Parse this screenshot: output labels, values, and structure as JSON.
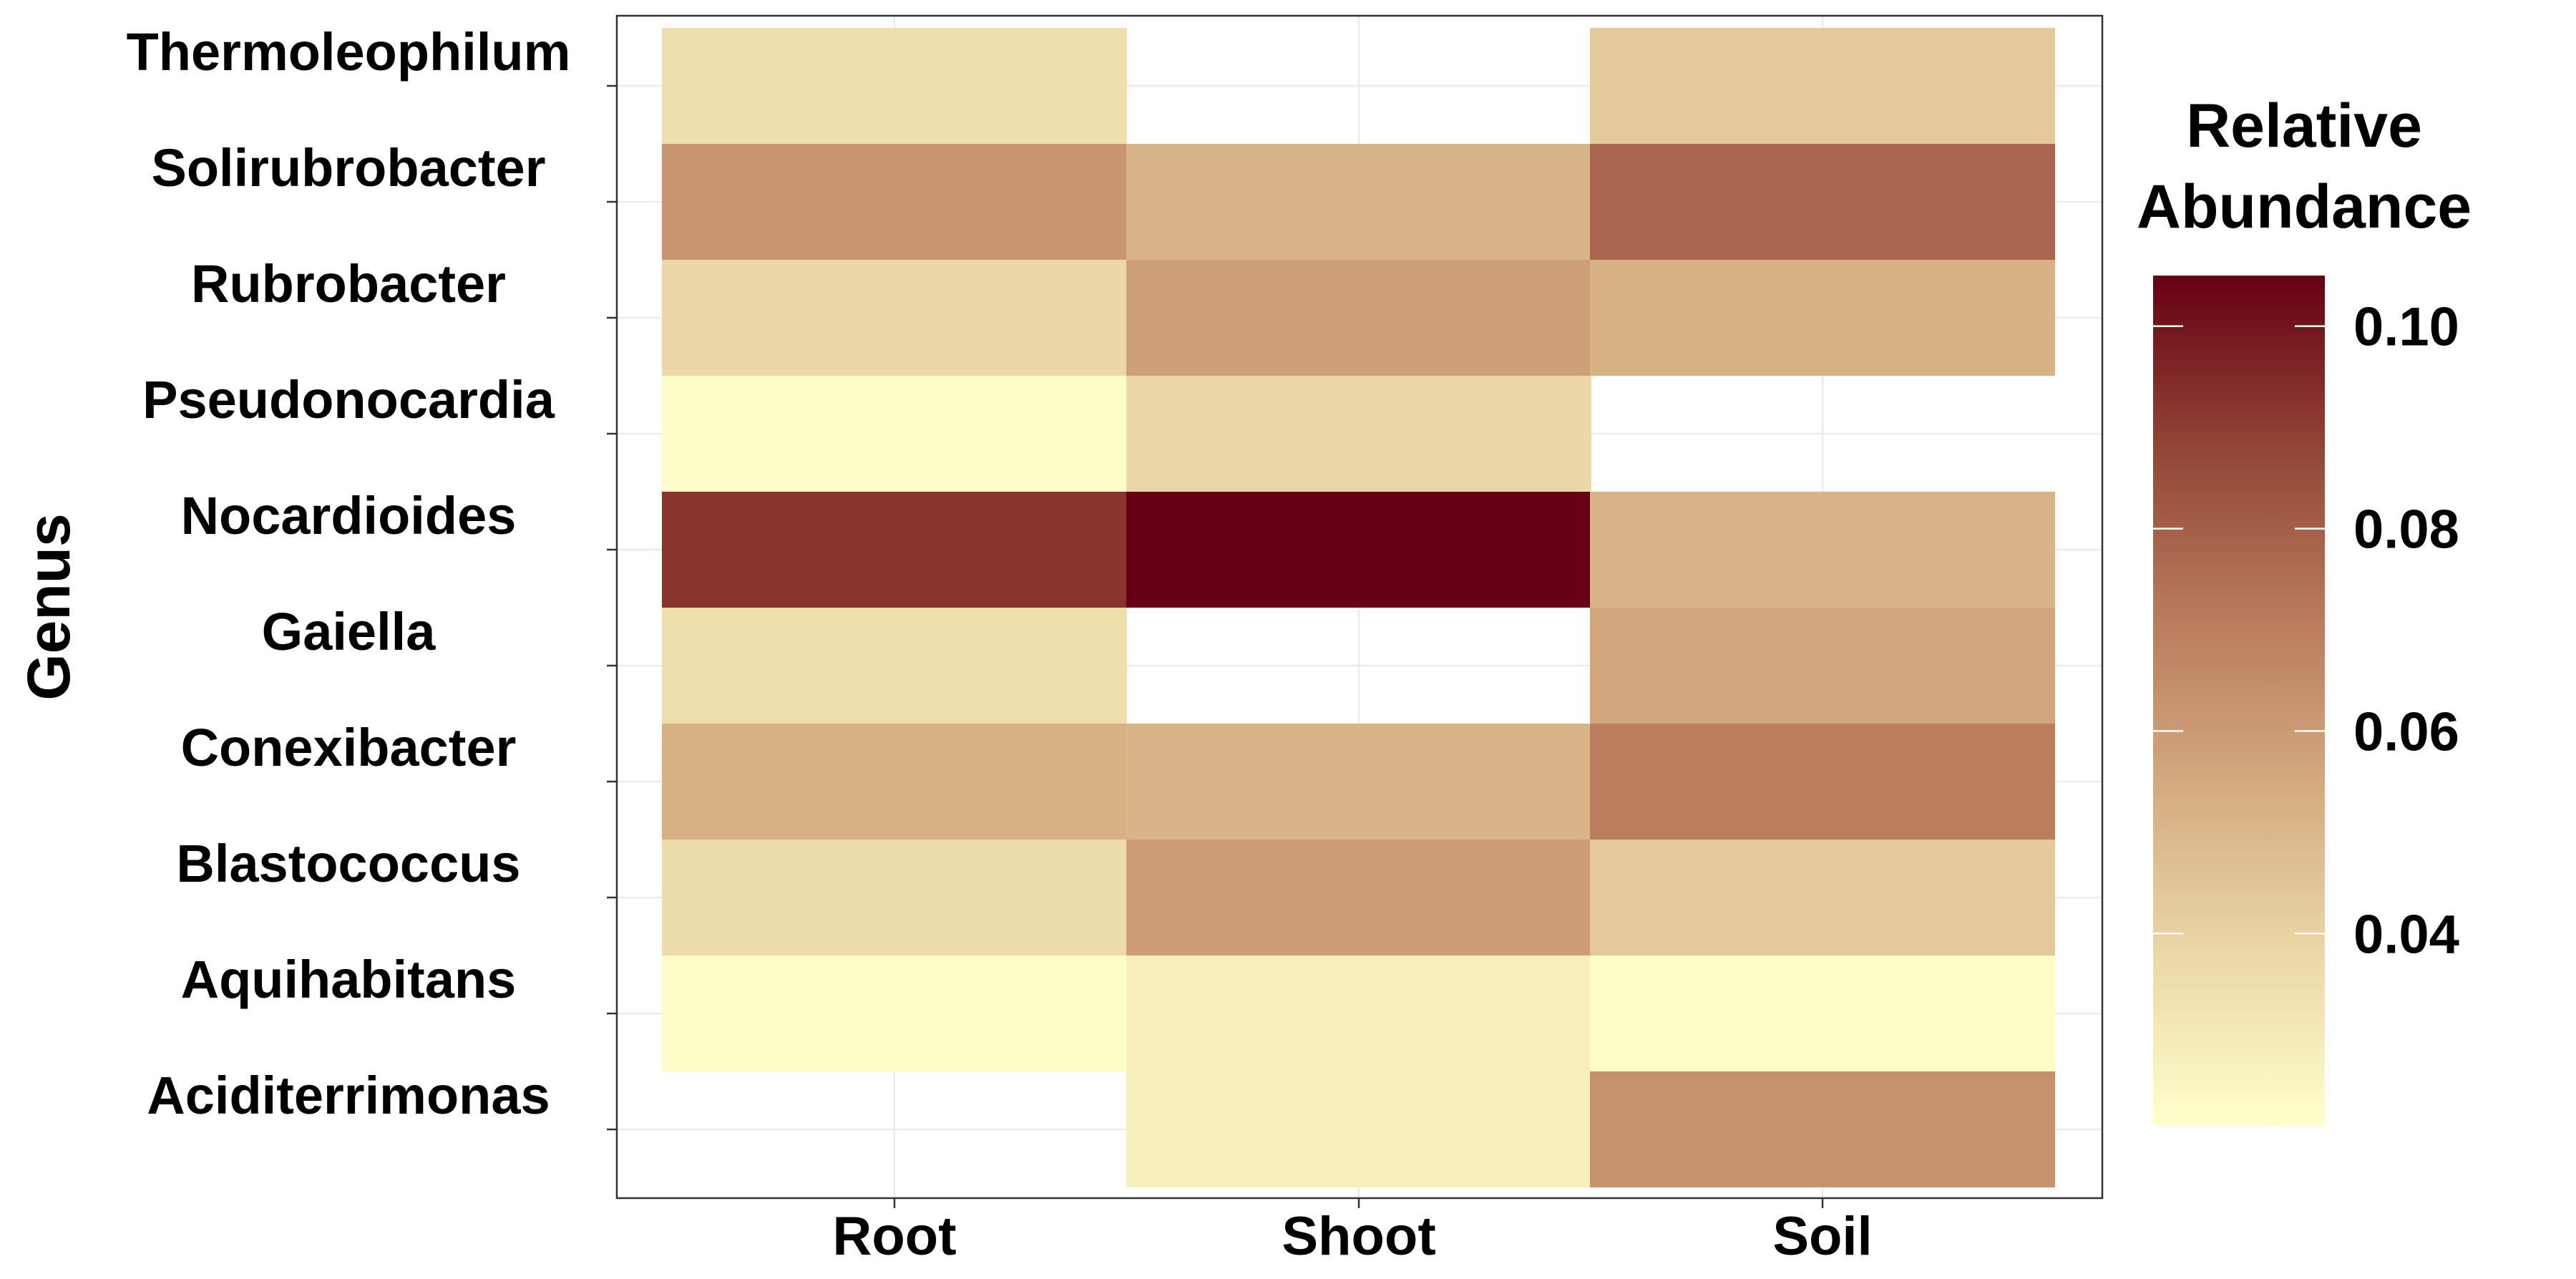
{
  "chart_data": {
    "type": "heatmap",
    "xlabel": "",
    "ylabel": "Genus",
    "x_categories": [
      "Root",
      "Shoot",
      "Soil"
    ],
    "y_categories": [
      "Thermoleophilum",
      "Solirubrobacter",
      "Rubrobacter",
      "Pseudonocardia",
      "Nocardioides",
      "Gaiella",
      "Conexibacter",
      "Blastococcus",
      "Aquihabitans",
      "Aciditerrimonas"
    ],
    "values": [
      [
        0.035,
        null,
        0.043
      ],
      [
        0.062,
        0.051,
        0.078
      ],
      [
        0.038,
        0.058,
        0.052
      ],
      [
        0.022,
        0.038,
        null
      ],
      [
        0.092,
        0.105,
        0.051
      ],
      [
        0.035,
        null,
        0.056
      ],
      [
        0.052,
        0.051,
        0.07
      ],
      [
        0.036,
        0.059,
        0.043
      ],
      [
        0.022,
        0.028,
        0.022
      ],
      [
        null,
        0.028,
        0.063
      ]
    ],
    "legend": {
      "title": "Relative Abundance",
      "title_lines": [
        "Relative",
        "Abundance"
      ],
      "ticks": [
        "0.04",
        "0.06",
        "0.08",
        "0.10"
      ],
      "tick_values": [
        0.04,
        0.06,
        0.08,
        0.1
      ],
      "min": 0.021,
      "max": 0.105,
      "placement": "right"
    },
    "color_scale": [
      "#ffffcc",
      "#ebd8a7",
      "#d4aa7f",
      "#b87a5c",
      "#914535",
      "#670014"
    ],
    "grid": true
  }
}
